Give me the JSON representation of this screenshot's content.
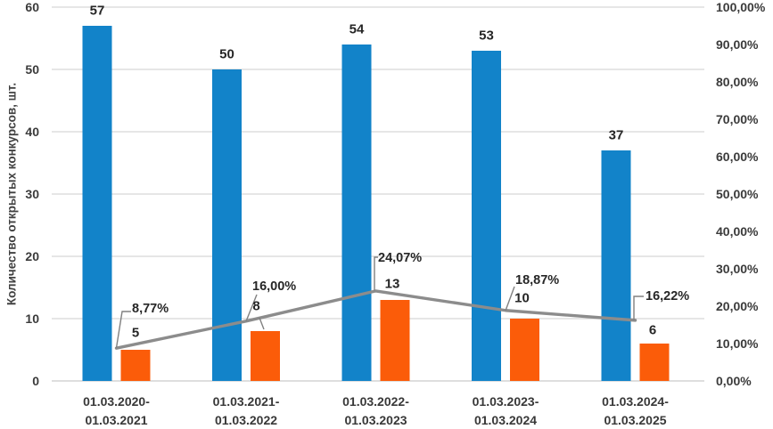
{
  "chart_data": {
    "type": "combo",
    "subtype": "clustered-bars-plus-line",
    "title": "",
    "legend": "none",
    "grid": true,
    "categories": [
      {
        "line1": "01.03.2020-",
        "line2": "01.03.2021"
      },
      {
        "line1": "01.03.2021-",
        "line2": "01.03.2022"
      },
      {
        "line1": "01.03.2022-",
        "line2": "01.03.2023"
      },
      {
        "line1": "01.03.2023-",
        "line2": "01.03.2024"
      },
      {
        "line1": "01.03.2024-",
        "line2": "01.03.2025"
      }
    ],
    "series": [
      {
        "id": "bars-blue",
        "type": "bar",
        "axis": "left",
        "color": "#1283C9",
        "values": [
          57,
          50,
          54,
          53,
          37
        ],
        "labels": [
          "57",
          "50",
          "54",
          "53",
          "37"
        ]
      },
      {
        "id": "bars-orange",
        "type": "bar",
        "axis": "left",
        "color": "#FB5C09",
        "values": [
          5,
          8,
          13,
          10,
          6
        ],
        "labels": [
          "5",
          "8",
          "13",
          "10",
          "6"
        ]
      },
      {
        "id": "trend-line",
        "type": "line",
        "axis": "right",
        "color": "#8C8C8C",
        "values_percent": [
          8.77,
          16.0,
          24.07,
          18.87,
          16.22
        ],
        "labels": [
          "8,77%",
          "16,00%",
          "24,07%",
          "18,87%",
          "16,22%"
        ]
      }
    ],
    "left_axis": {
      "title": "Количество открытых конкурсов, шт.",
      "min": 0,
      "max": 60,
      "step": 10,
      "tick_labels": [
        "0",
        "10",
        "20",
        "30",
        "40",
        "50",
        "60"
      ]
    },
    "right_axis": {
      "min": 0,
      "max": 100,
      "step": 10,
      "tick_labels": [
        "0,00%",
        "10,00%",
        "20,00%",
        "30,00%",
        "40,00%",
        "50,00%",
        "60,00%",
        "70,00%",
        "80,00%",
        "90,00%",
        "100,00%"
      ]
    },
    "colors": {
      "bar_blue": "#1283C9",
      "bar_orange": "#FB5C09",
      "line_gray": "#8C8C8C",
      "leader_gray": "#808080",
      "gridline": "#D6D6D6",
      "data_label_text": "#262626",
      "axis_text": "#3B3B3B"
    }
  }
}
